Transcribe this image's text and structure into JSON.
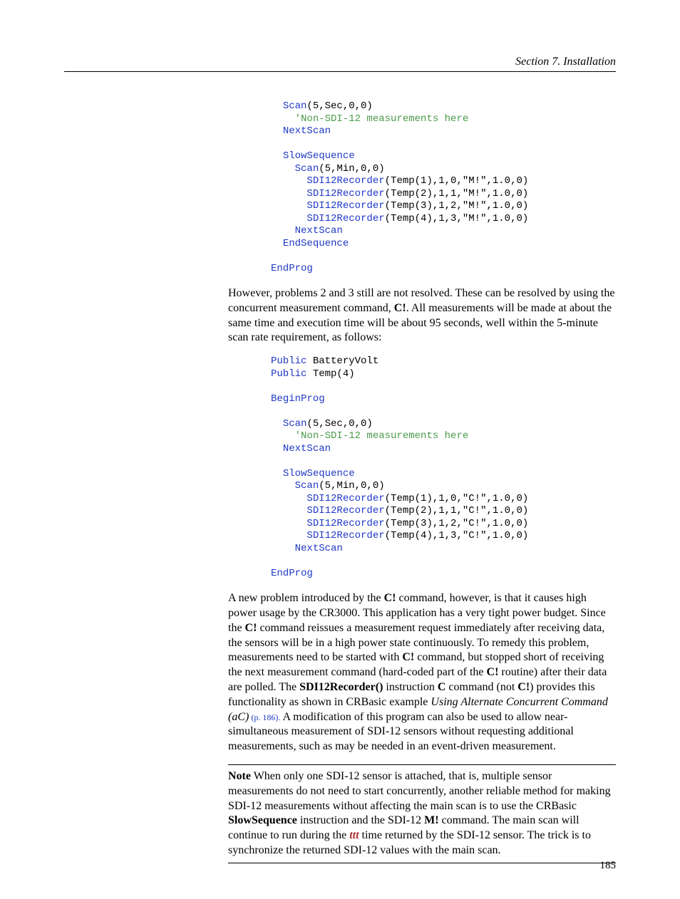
{
  "header": {
    "text": "Section 7.  Installation"
  },
  "code1": {
    "ind": "  ",
    "lines": [
      {
        "t": "Scan",
        "s": "(5,Sec,0,0)",
        "kw": true,
        "lvl": 1
      },
      {
        "t": "'Non-SDI-12 measurements here",
        "cm": true,
        "lvl": 2
      },
      {
        "t": "NextScan",
        "kw": true,
        "lvl": 1
      },
      {
        "t": "",
        "lvl": 0
      },
      {
        "t": "SlowSequence",
        "kw": true,
        "lvl": 1
      },
      {
        "t": "Scan",
        "s": "(5,Min,0,0)",
        "kw": true,
        "lvl": 2
      },
      {
        "t": "SDI12Recorder",
        "s": "(Temp(1),1,0,\"M!\",1.0,0)",
        "kw": true,
        "lvl": 3
      },
      {
        "t": "SDI12Recorder",
        "s": "(Temp(2),1,1,\"M!\",1.0,0)",
        "kw": true,
        "lvl": 3
      },
      {
        "t": "SDI12Recorder",
        "s": "(Temp(3),1,2,\"M!\",1.0,0)",
        "kw": true,
        "lvl": 3
      },
      {
        "t": "SDI12Recorder",
        "s": "(Temp(4),1,3,\"M!\",1.0,0)",
        "kw": true,
        "lvl": 3
      },
      {
        "t": "NextScan",
        "kw": true,
        "lvl": 2
      },
      {
        "t": "EndSequence",
        "kw": true,
        "lvl": 1
      },
      {
        "t": "",
        "lvl": 0
      },
      {
        "t": "EndProg",
        "kw": true,
        "lvl": 0
      }
    ]
  },
  "para1": {
    "text": "However, problems 2 and 3 still are not resolved.  These can be resolved by using the concurrent measurement command, {b}C!{/b}.  All measurements will be made at about the same time and execution time will be about 95 seconds, well within the 5-minute scan rate requirement, as follows:"
  },
  "code2": {
    "lines": [
      {
        "p": "Public",
        "s": " BatteryVolt",
        "lvl": 0
      },
      {
        "p": "Public",
        "s": " Temp(4)",
        "lvl": 0
      },
      {
        "t": "",
        "lvl": 0
      },
      {
        "t": "BeginProg",
        "kw": true,
        "lvl": 0
      },
      {
        "t": "",
        "lvl": 0
      },
      {
        "t": "Scan",
        "s": "(5,Sec,0,0)",
        "kw": true,
        "lvl": 1
      },
      {
        "t": "'Non-SDI-12 measurements here",
        "cm": true,
        "lvl": 2
      },
      {
        "t": "NextScan",
        "kw": true,
        "lvl": 1
      },
      {
        "t": "",
        "lvl": 0
      },
      {
        "t": "SlowSequence",
        "kw": true,
        "lvl": 1
      },
      {
        "t": "Scan",
        "s": "(5,Min,0,0)",
        "kw": true,
        "lvl": 2
      },
      {
        "t": "SDI12Recorder",
        "s": "(Temp(1),1,0,\"C!\",1.0,0)",
        "kw": true,
        "lvl": 3
      },
      {
        "t": "SDI12Recorder",
        "s": "(Temp(2),1,1,\"C!\",1.0,0)",
        "kw": true,
        "lvl": 3
      },
      {
        "t": "SDI12Recorder",
        "s": "(Temp(3),1,2,\"C!\",1.0,0)",
        "kw": true,
        "lvl": 3
      },
      {
        "t": "SDI12Recorder",
        "s": "(Temp(4),1,3,\"C!\",1.0,0)",
        "kw": true,
        "lvl": 3
      },
      {
        "t": "NextScan",
        "kw": true,
        "lvl": 2
      },
      {
        "t": "",
        "lvl": 0
      },
      {
        "t": "EndProg",
        "kw": true,
        "lvl": 0
      }
    ]
  },
  "para2": {
    "frag1": "A new problem introduced by the ",
    "b1": "C!",
    "frag2": " command, however, is that it causes high power usage by the CR3000.  This application has a very tight power budget.  Since the ",
    "b2": "C!",
    "frag3": " command reissues a measurement request immediately after receiving data, the sensors will be in a high power state continuously.  To remedy this problem, measurements need to be started with ",
    "b3": "C!",
    "frag4": " command, but stopped short of receiving the next measurement command (hard-coded part of the ",
    "b4": "C!",
    "frag5": " routine) after their data are polled.  The ",
    "b5": "SDI12Recorder()",
    "frag6": " instruction ",
    "b6": "C",
    "frag7": " command (not ",
    "b7": "C!",
    "frag8": ") provides this functionality as shown in CRBasic example ",
    "i1": "Using Alternate Concurrent Command (aC)",
    "link1": " (p. 186).",
    "frag9": "  A modification of this program can also be used to allow near-simultaneous measurement of SDI-12 sensors without requesting additional measurements, such as may be needed in an event-driven measurement."
  },
  "note": {
    "b1": "Note",
    "frag1": "  When only one SDI-12 sensor is attached, that is, multiple sensor measurements do not need to start concurrently, another reliable method for making SDI-12 measurements without affecting the main scan is to use the CRBasic ",
    "b2": "SlowSequence",
    "frag2": " instruction and the SDI-12 ",
    "b3": "M!",
    "frag3": " command.  The main scan will continue to run during the ",
    "bi": "ttt",
    "frag4": " time returned by the SDI-12 sensor.  The trick is to synchronize the returned SDI-12 values with the main scan."
  },
  "pagenum": "185"
}
